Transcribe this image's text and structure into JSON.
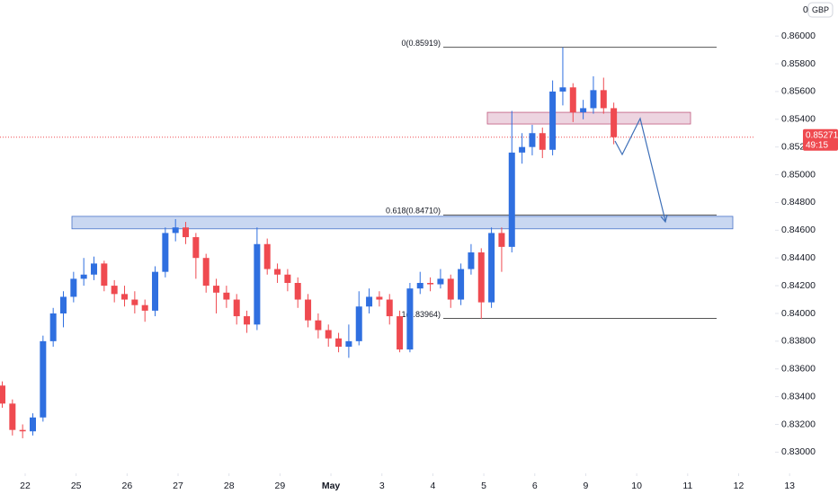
{
  "chart_data": {
    "type": "candlestick",
    "currency": "GBP",
    "scale_prefix": "0.",
    "up_color": "#2f6fe0",
    "down_color": "#ef4a50",
    "x": [
      -0.45,
      -0.25,
      -0.05,
      0.15,
      0.35,
      0.55,
      0.75,
      0.95,
      1.15,
      1.35,
      1.55,
      1.75,
      1.95,
      2.15,
      2.35,
      2.55,
      2.75,
      2.95,
      3.15,
      3.35,
      3.55,
      3.75,
      3.95,
      4.15,
      4.35,
      4.55,
      4.75,
      4.95,
      5.15,
      5.35,
      5.55,
      5.75,
      5.95,
      6.15,
      6.35,
      6.55,
      6.75,
      6.95,
      7.15,
      7.35,
      7.55,
      7.75,
      7.95,
      8.15,
      8.35,
      8.55,
      8.75,
      8.95,
      9.15,
      9.35,
      9.55,
      9.75,
      9.95,
      10.15,
      10.35,
      10.55,
      10.75,
      10.95,
      11.15,
      11.35,
      11.55
    ],
    "open": [
      0.8348,
      0.8335,
      0.8316,
      0.8315,
      0.8325,
      0.838,
      0.84,
      0.8412,
      0.8425,
      0.8428,
      0.8436,
      0.842,
      0.8414,
      0.841,
      0.8406,
      0.8402,
      0.843,
      0.8458,
      0.8462,
      0.8455,
      0.844,
      0.842,
      0.8415,
      0.841,
      0.8398,
      0.8392,
      0.845,
      0.8432,
      0.8428,
      0.8422,
      0.841,
      0.8395,
      0.8388,
      0.8382,
      0.8376,
      0.838,
      0.8405,
      0.8412,
      0.841,
      0.8398,
      0.8374,
      0.8418,
      0.8422,
      0.8421,
      0.8425,
      0.841,
      0.8432,
      0.8444,
      0.8408,
      0.8458,
      0.8448,
      0.8516,
      0.852,
      0.853,
      0.8518,
      0.856,
      0.8563,
      0.8545,
      0.8548,
      0.8561,
      0.8548
    ],
    "high": [
      0.8351,
      0.8338,
      0.832,
      0.8328,
      0.8384,
      0.8404,
      0.8416,
      0.843,
      0.844,
      0.8441,
      0.8438,
      0.8424,
      0.842,
      0.8416,
      0.841,
      0.8434,
      0.8462,
      0.8468,
      0.8466,
      0.8458,
      0.8443,
      0.8425,
      0.842,
      0.8414,
      0.8402,
      0.8462,
      0.8454,
      0.8436,
      0.8432,
      0.8426,
      0.8414,
      0.84,
      0.8392,
      0.8386,
      0.8392,
      0.8416,
      0.8418,
      0.8416,
      0.8414,
      0.8402,
      0.8422,
      0.843,
      0.8426,
      0.8432,
      0.8428,
      0.8436,
      0.845,
      0.8447,
      0.8462,
      0.8462,
      0.8546,
      0.853,
      0.8536,
      0.8534,
      0.8568,
      0.85919,
      0.8566,
      0.8554,
      0.8571,
      0.857,
      0.8552
    ],
    "low": [
      0.8332,
      0.8312,
      0.831,
      0.8312,
      0.8322,
      0.8376,
      0.839,
      0.8408,
      0.842,
      0.8424,
      0.8416,
      0.8408,
      0.8405,
      0.84,
      0.8394,
      0.8398,
      0.8426,
      0.8452,
      0.845,
      0.8425,
      0.8415,
      0.84,
      0.8404,
      0.8392,
      0.8386,
      0.8388,
      0.8428,
      0.8422,
      0.8416,
      0.8404,
      0.839,
      0.8382,
      0.8376,
      0.8372,
      0.8368,
      0.8377,
      0.84,
      0.8405,
      0.8392,
      0.8372,
      0.8372,
      0.8414,
      0.8416,
      0.8418,
      0.8404,
      0.8406,
      0.8428,
      0.8396,
      0.8404,
      0.843,
      0.8444,
      0.8508,
      0.8514,
      0.8512,
      0.8514,
      0.855,
      0.8538,
      0.854,
      0.8544,
      0.8544,
      0.8522
    ],
    "close": [
      0.8335,
      0.8316,
      0.8315,
      0.8325,
      0.838,
      0.84,
      0.8412,
      0.8425,
      0.8428,
      0.8436,
      0.842,
      0.8414,
      0.841,
      0.8406,
      0.8402,
      0.843,
      0.8458,
      0.8462,
      0.8455,
      0.844,
      0.842,
      0.8415,
      0.841,
      0.8398,
      0.8392,
      0.845,
      0.8432,
      0.8428,
      0.8422,
      0.841,
      0.8395,
      0.8388,
      0.8382,
      0.8376,
      0.838,
      0.8405,
      0.8412,
      0.841,
      0.8398,
      0.8374,
      0.8418,
      0.8422,
      0.8421,
      0.8425,
      0.841,
      0.8432,
      0.8444,
      0.8408,
      0.8458,
      0.8448,
      0.8516,
      0.852,
      0.853,
      0.8518,
      0.856,
      0.8563,
      0.8545,
      0.8548,
      0.8561,
      0.8548,
      0.85271
    ],
    "xlim": [
      -0.494,
      15.95
    ],
    "xticks": [
      {
        "value": 0,
        "label": "22"
      },
      {
        "value": 1,
        "label": "25"
      },
      {
        "value": 2,
        "label": "26"
      },
      {
        "value": 3,
        "label": "27"
      },
      {
        "value": 4,
        "label": "28"
      },
      {
        "value": 5,
        "label": "29"
      },
      {
        "value": 6,
        "label": "May"
      },
      {
        "value": 7,
        "label": "3"
      },
      {
        "value": 8,
        "label": "4"
      },
      {
        "value": 9,
        "label": "5"
      },
      {
        "value": 10,
        "label": "6"
      },
      {
        "value": 11,
        "label": "9"
      },
      {
        "value": 12,
        "label": "10"
      },
      {
        "value": 13,
        "label": "11"
      },
      {
        "value": 14,
        "label": "12"
      },
      {
        "value": 15,
        "label": "13"
      }
    ],
    "ylim": [
      0.8286,
      0.8626
    ],
    "yticks": [
      {
        "value": 0.83,
        "label": "0.83000"
      },
      {
        "value": 0.832,
        "label": "0.83200"
      },
      {
        "value": 0.834,
        "label": "0.83400"
      },
      {
        "value": 0.836,
        "label": "0.83600"
      },
      {
        "value": 0.838,
        "label": "0.83800"
      },
      {
        "value": 0.84,
        "label": "0.84000"
      },
      {
        "value": 0.842,
        "label": "0.84200"
      },
      {
        "value": 0.844,
        "label": "0.84400"
      },
      {
        "value": 0.846,
        "label": "0.84600"
      },
      {
        "value": 0.848,
        "label": "0.84800"
      },
      {
        "value": 0.85,
        "label": "0.85000"
      },
      {
        "value": 0.852,
        "label": "0.85200"
      },
      {
        "value": 0.854,
        "label": "0.85400"
      },
      {
        "value": 0.856,
        "label": "0.85600"
      },
      {
        "value": 0.858,
        "label": "0.85800"
      },
      {
        "value": 0.86,
        "label": "0.86000"
      }
    ],
    "fib_levels": [
      {
        "value": 0.85919,
        "label": "0(0.85919)"
      },
      {
        "value": 0.8471,
        "label": "0.618(0.84710)"
      },
      {
        "value": 0.83964,
        "label": "1(0.83964)"
      }
    ],
    "zones": [
      {
        "low": 0.8461,
        "high": 0.847,
        "color": "#b7c9ec"
      },
      {
        "low": 0.85366,
        "high": 0.8545,
        "color": "#e7c5d6"
      }
    ],
    "current_price": 0.85271,
    "countdown": "49:15"
  }
}
